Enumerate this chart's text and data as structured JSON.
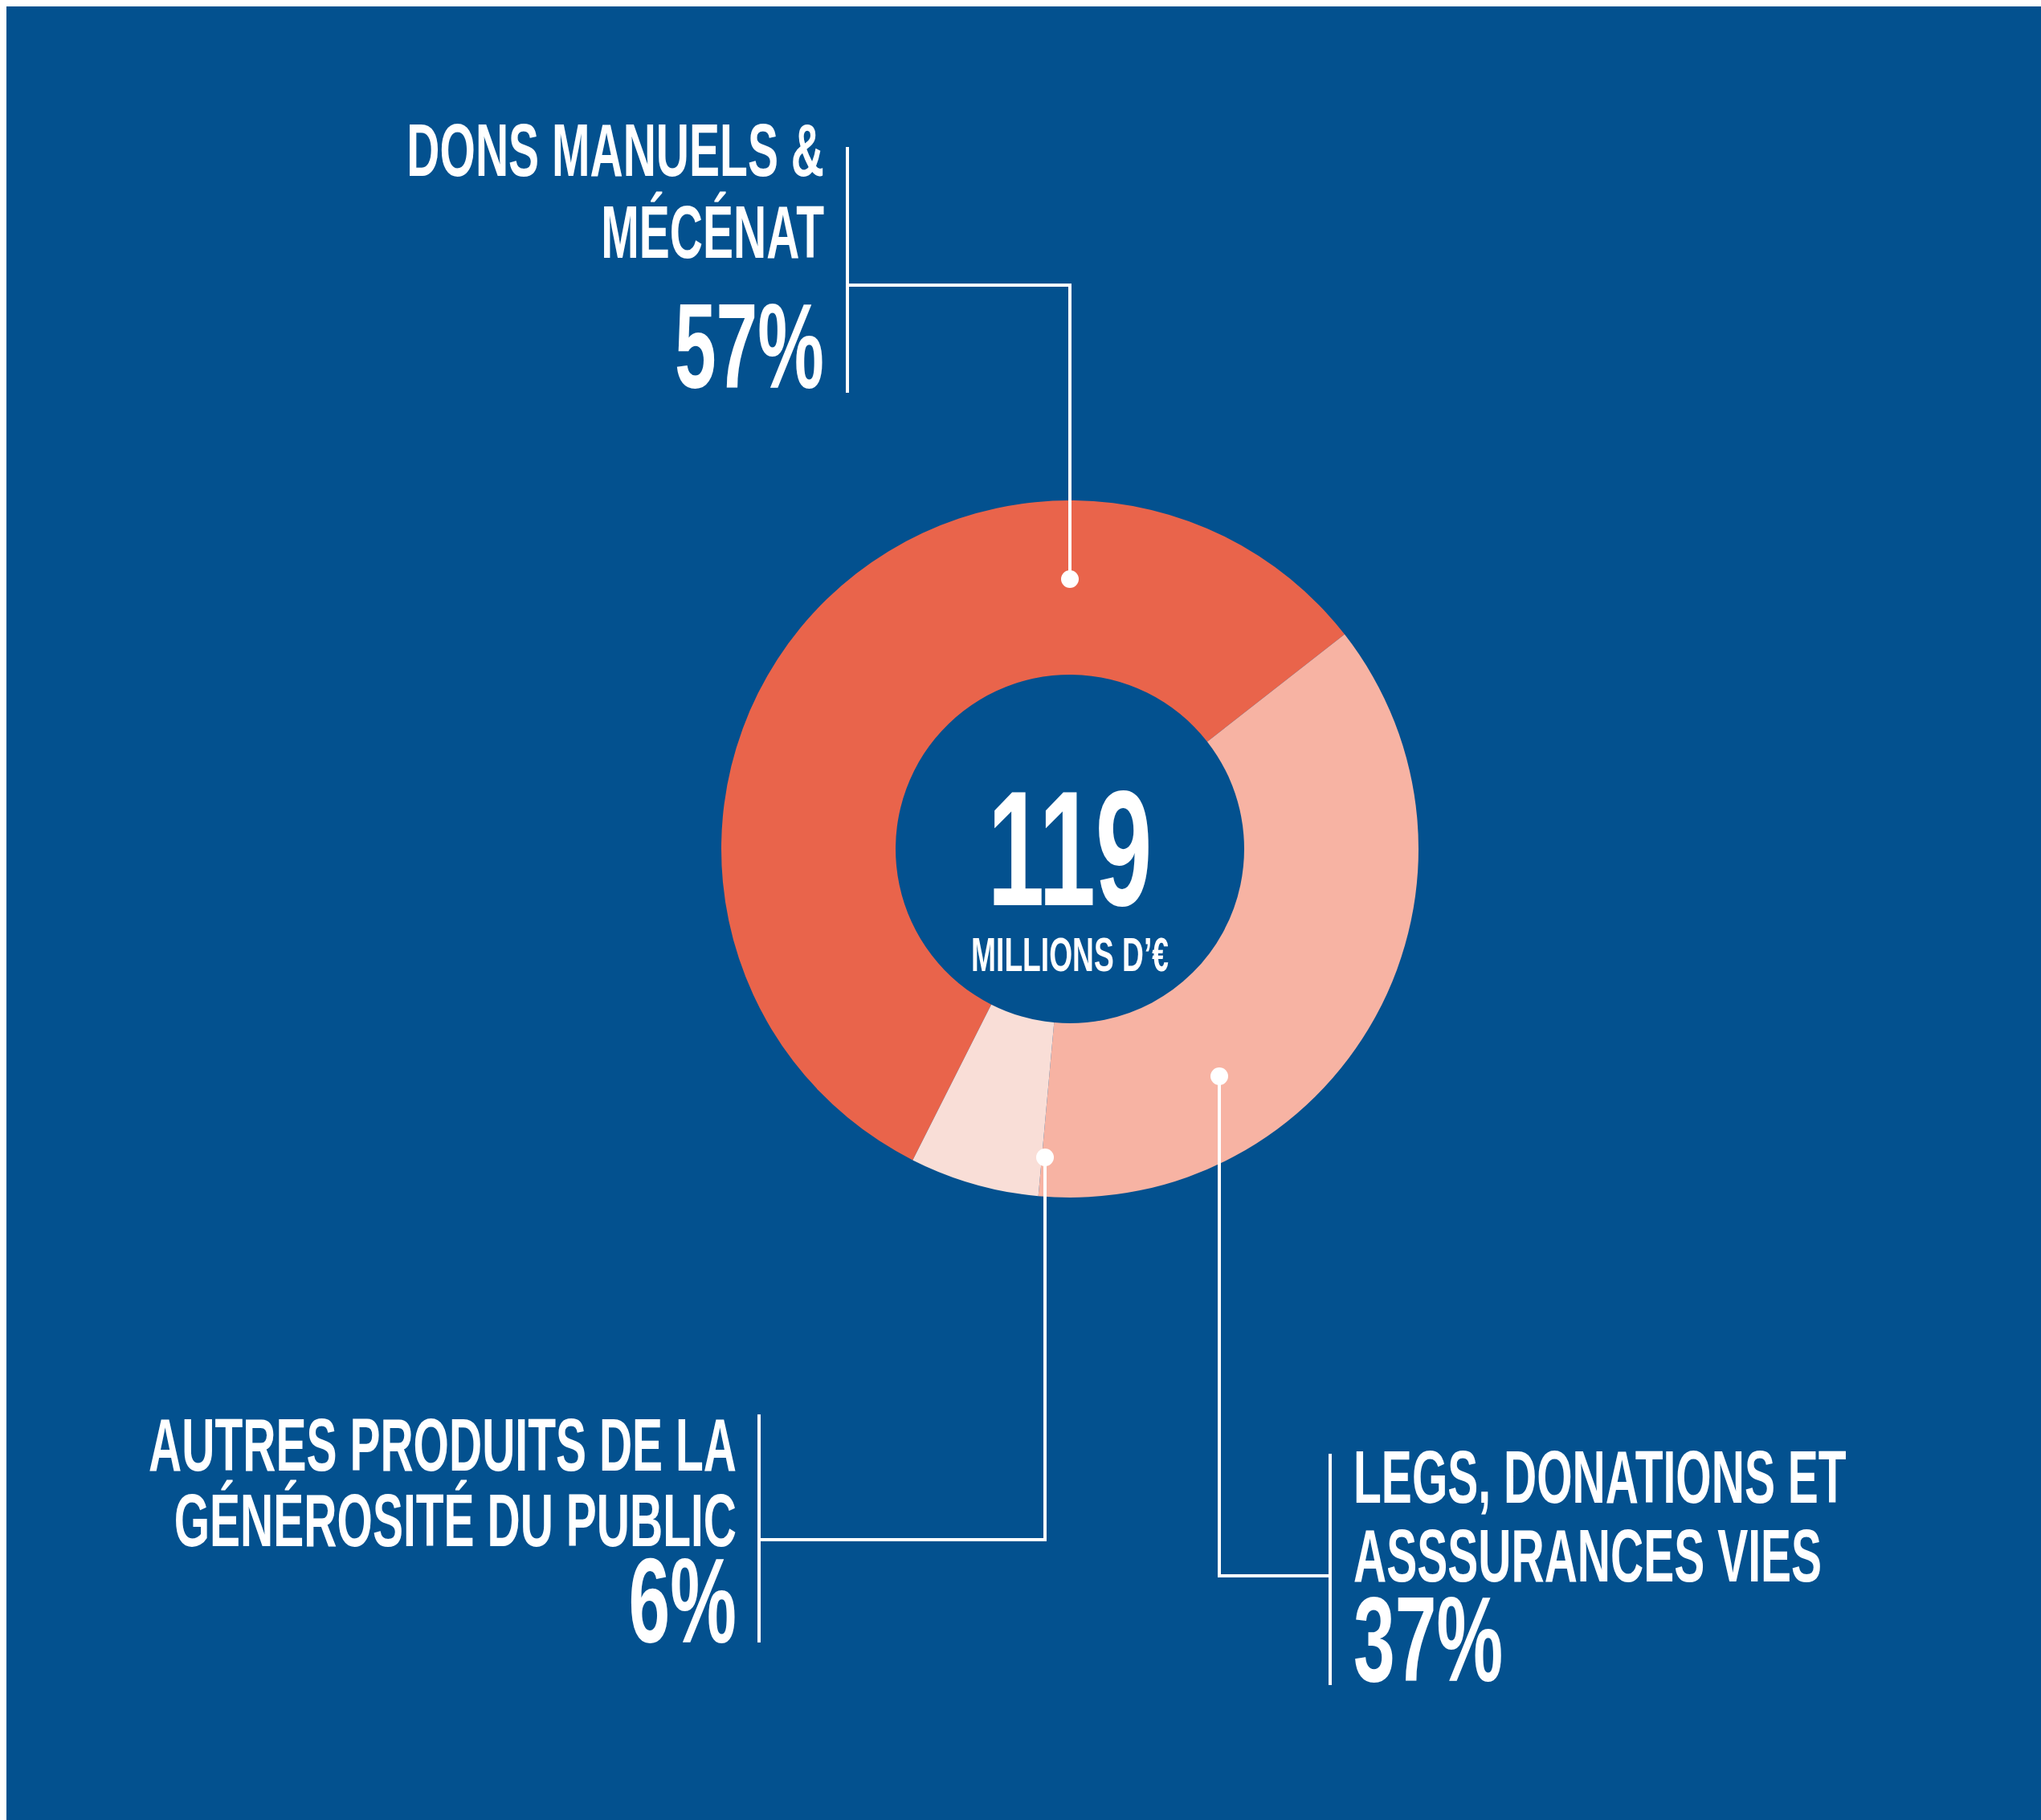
{
  "chart_data": {
    "type": "donut",
    "title": "119",
    "subtitle": "MILLIONS D’€",
    "categories": [
      "DONS MANUELS  &\nMÉCÉNAT",
      "LEGS, DONATIONS ET\nASSSURANCES VIES",
      "AUTRES PRODUITS DE LA\nGÉNÉROSITÉ DU PUBLIC"
    ],
    "values": [
      57,
      37,
      6
    ],
    "value_labels": [
      "57%",
      "37%",
      "6%"
    ],
    "colors": [
      "#e9644b",
      "#f7b3a3",
      "#f9ded7"
    ]
  }
}
